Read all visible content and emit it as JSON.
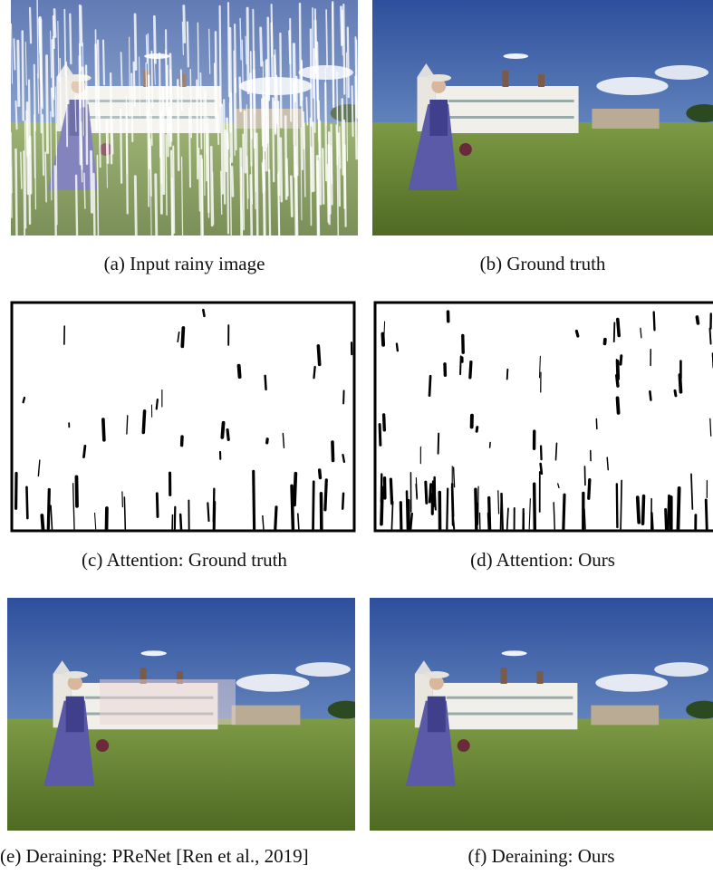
{
  "figure": {
    "captions": [
      "(a) Input rainy image",
      "(b) Ground truth",
      "(c) Attention: Ground truth",
      "(d) Attention: Ours",
      "(e) Deraining: PReNet [Ren et al., 2019]",
      "(f) Deraining: Ours"
    ]
  }
}
